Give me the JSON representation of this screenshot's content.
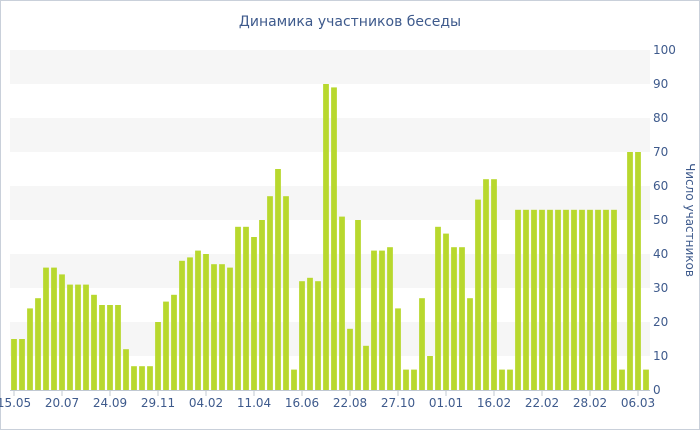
{
  "chart_data": {
    "type": "bar",
    "title": "Динамика участников беседы",
    "ylabel": "Число участников",
    "ylim": [
      0,
      100
    ],
    "yticks": [
      0,
      10,
      20,
      30,
      40,
      50,
      60,
      70,
      80,
      90,
      100
    ],
    "bar_color": "#b8d82e",
    "band_color": "#f6f6f6",
    "axis_text_color": "#3e5a8c",
    "x_tick_labels": [
      {
        "index": 0,
        "label": "15.05"
      },
      {
        "index": 6,
        "label": "20.07"
      },
      {
        "index": 12,
        "label": "24.09"
      },
      {
        "index": 18,
        "label": "29.11"
      },
      {
        "index": 24,
        "label": "04.02"
      },
      {
        "index": 30,
        "label": "11.04"
      },
      {
        "index": 36,
        "label": "16.06"
      },
      {
        "index": 42,
        "label": "22.08"
      },
      {
        "index": 48,
        "label": "27.10"
      },
      {
        "index": 54,
        "label": "01.01"
      },
      {
        "index": 60,
        "label": "16.02"
      },
      {
        "index": 66,
        "label": "22.02"
      },
      {
        "index": 72,
        "label": "28.02"
      },
      {
        "index": 78,
        "label": "06.03"
      }
    ],
    "values": [
      15,
      15,
      24,
      27,
      36,
      36,
      34,
      31,
      31,
      31,
      28,
      25,
      25,
      25,
      12,
      7,
      7,
      7,
      20,
      26,
      28,
      38,
      39,
      41,
      40,
      37,
      37,
      36,
      48,
      48,
      45,
      50,
      57,
      65,
      57,
      6,
      32,
      33,
      32,
      90,
      89,
      51,
      18,
      50,
      13,
      41,
      41,
      42,
      24,
      6,
      6,
      27,
      10,
      48,
      46,
      42,
      42,
      27,
      56,
      62,
      62,
      6,
      6,
      53,
      53,
      53,
      53,
      53,
      53,
      53,
      53,
      53,
      53,
      53,
      53,
      53,
      6,
      70,
      70,
      6
    ]
  }
}
